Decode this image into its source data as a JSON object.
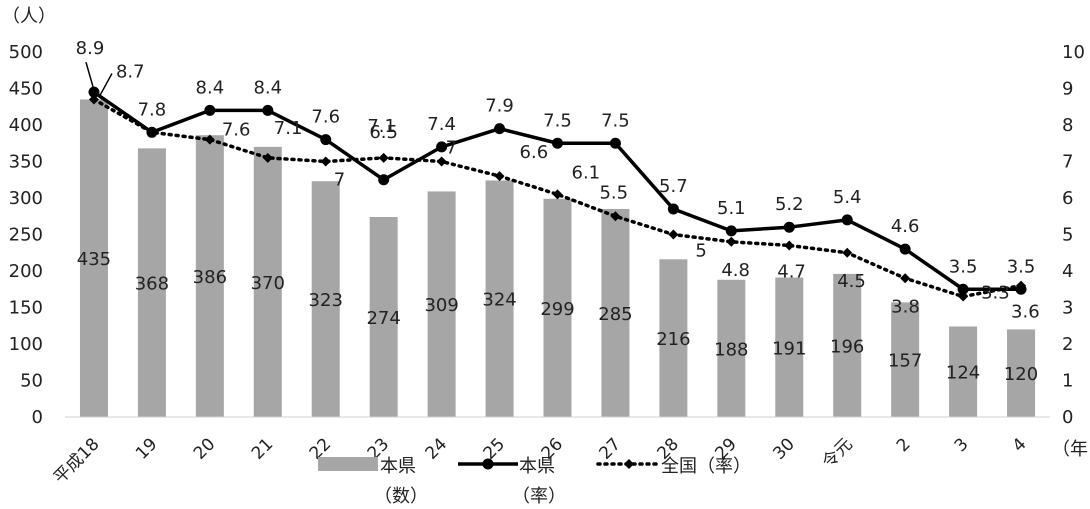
{
  "chart_data": {
    "type": "bar",
    "categories": [
      "平成18",
      "19",
      "20",
      "21",
      "22",
      "23",
      "24",
      "25",
      "26",
      "27",
      "28",
      "29",
      "30",
      "令元",
      "2",
      "3",
      "4"
    ],
    "series": [
      {
        "name": "本県（数）",
        "type": "bar",
        "axis": "left",
        "color": "#a6a6a6",
        "values": [
          435,
          368,
          386,
          370,
          323,
          274,
          309,
          324,
          299,
          285,
          216,
          188,
          191,
          196,
          157,
          124,
          120
        ],
        "labels": [
          "435",
          "368",
          "386",
          "370",
          "323",
          "274",
          "309",
          "324",
          "299",
          "285",
          "216",
          "188",
          "191",
          "196",
          "157",
          "124",
          "120"
        ]
      },
      {
        "name": "本県（率）",
        "type": "line",
        "axis": "right",
        "color": "#000000",
        "marker": "circle",
        "values": [
          8.9,
          7.8,
          8.4,
          8.4,
          7.6,
          6.5,
          7.4,
          7.9,
          7.5,
          7.5,
          5.7,
          5.1,
          5.2,
          5.4,
          4.6,
          3.5,
          3.5
        ],
        "labels": [
          "8.9",
          "7.8",
          "8.4",
          "8.4",
          "7.6",
          "6.5",
          "7.4",
          "7.9",
          "7.5",
          "7.5",
          "5.7",
          "5.1",
          "5.2",
          "5.4",
          "4.6",
          "3.5",
          "3.5"
        ]
      },
      {
        "name": "全国（率）",
        "type": "line",
        "axis": "right",
        "color": "#000000",
        "dashed": true,
        "marker": "diamond",
        "values": [
          8.7,
          7.8,
          7.6,
          7.1,
          7.0,
          7.1,
          7.0,
          6.6,
          6.1,
          5.5,
          5.0,
          4.8,
          4.7,
          4.5,
          3.8,
          3.3,
          3.6
        ],
        "labels": [
          "8.7",
          "",
          "7.6",
          "7.1",
          "7",
          "7.1",
          "7",
          "6.6",
          "6.1",
          "5.5",
          "5",
          "4.8",
          "4.7",
          "4.5",
          "3.8",
          "3.3",
          "3.6"
        ]
      }
    ],
    "y_left": {
      "unit": "（人）",
      "range": [
        0,
        500
      ],
      "ticks": [
        0,
        50,
        100,
        150,
        200,
        250,
        300,
        350,
        400,
        450,
        500
      ]
    },
    "y_right": {
      "range": [
        0,
        10
      ],
      "ticks": [
        0,
        1,
        2,
        3,
        4,
        5,
        6,
        7,
        8,
        9,
        10
      ]
    },
    "x_unit": "（年",
    "legend": {
      "position": "bottom-center",
      "entries": [
        "本県",
        "（数）",
        "本県",
        "（率）",
        "全国（率）"
      ]
    },
    "grid": false
  }
}
